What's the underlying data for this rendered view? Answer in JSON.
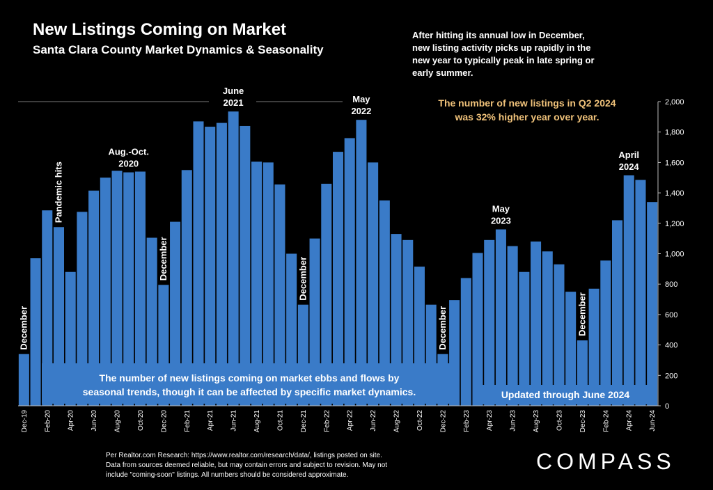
{
  "header": {
    "title": "New Listings Coming on Market",
    "subtitle": "Santa Clara County Market Dynamics & Seasonality"
  },
  "intro_note": [
    "After hitting its annual low in December,",
    "new listing activity picks up rapidly in the",
    "new year to typically peak in late spring or",
    "early summer."
  ],
  "highlight_note": [
    "The number of new listings in Q2 2024",
    "was 32% higher year over year."
  ],
  "caption": [
    "The number of new listings coming on market ebbs and flows by",
    "seasonal trends, though it can be affected by specific market dynamics."
  ],
  "updated_note": "Updated through June 2024",
  "source_note": [
    "Per Realtor.com Research:  https://www.realtor.com/research/data/, listings posted on site.",
    "Data from sources deemed reliable, but may contain errors and subject to revision. May not",
    "include \"coming-soon\" listings. All numbers should be considered approximate."
  ],
  "logo": "COMPASS",
  "colors": {
    "background": "#000000",
    "bar": "#3a7bc8",
    "caption_box": "#3a7bc8",
    "highlight_text": "#f0c27a",
    "gridline": "#7a7a7a",
    "text": "#ffffff"
  },
  "chart_data": {
    "type": "bar",
    "x": [
      "Dec-19",
      "Jan-20",
      "Feb-20",
      "Mar-20",
      "Apr-20",
      "May-20",
      "Jun-20",
      "Jul-20",
      "Aug-20",
      "Sep-20",
      "Oct-20",
      "Nov-20",
      "Dec-20",
      "Jan-21",
      "Feb-21",
      "Mar-21",
      "Apr-21",
      "May-21",
      "Jun-21",
      "Jul-21",
      "Aug-21",
      "Sep-21",
      "Oct-21",
      "Nov-21",
      "Dec-21",
      "Jan-22",
      "Feb-22",
      "Mar-22",
      "Apr-22",
      "May-22",
      "Jun-22",
      "Jul-22",
      "Aug-22",
      "Sep-22",
      "Oct-22",
      "Nov-22",
      "Dec-22",
      "Jan-23",
      "Feb-23",
      "Mar-23",
      "Apr-23",
      "May-23",
      "Jun-23",
      "Jul-23",
      "Aug-23",
      "Sep-23",
      "Oct-23",
      "Nov-23",
      "Dec-23",
      "Jan-24",
      "Feb-24",
      "Mar-24",
      "Apr-24",
      "May-24",
      "Jun-24"
    ],
    "x_tick_labels": [
      "Dec-19",
      "",
      "Feb-20",
      "",
      "Apr-20",
      "",
      "Jun-20",
      "",
      "Aug-20",
      "",
      "Oct-20",
      "",
      "Dec-20",
      "",
      "Feb-21",
      "",
      "Apr-21",
      "",
      "Jun-21",
      "",
      "Aug-21",
      "",
      "Oct-21",
      "",
      "Dec-21",
      "",
      "Feb-22",
      "",
      "Apr-22",
      "",
      "Jun-22",
      "",
      "Aug-22",
      "",
      "Oct-22",
      "",
      "Dec-22",
      "",
      "Feb-23",
      "",
      "Apr-23",
      "",
      "Jun-23",
      "",
      "Aug-23",
      "",
      "Oct-23",
      "",
      "Dec-23",
      "",
      "Feb-24",
      "",
      "Apr-24",
      "",
      "Jun-24"
    ],
    "values": [
      340,
      970,
      1285,
      1175,
      880,
      1275,
      1415,
      1500,
      1545,
      1535,
      1540,
      1105,
      795,
      1210,
      1550,
      1870,
      1835,
      1860,
      1935,
      1840,
      1605,
      1600,
      1455,
      1000,
      665,
      1100,
      1460,
      1670,
      1760,
      1880,
      1600,
      1350,
      1130,
      1090,
      915,
      665,
      340,
      695,
      840,
      1005,
      1090,
      1160,
      1050,
      880,
      1080,
      1015,
      930,
      750,
      430,
      770,
      955,
      1220,
      1515,
      1485,
      1340
    ],
    "y_ticks": [
      "0",
      "200",
      "400",
      "600",
      "800",
      "1,000",
      "1,200",
      "1,400",
      "1,600",
      "1,800",
      "2,000"
    ],
    "ylim": [
      0,
      2000
    ],
    "y_axis_position": "right",
    "grid": false,
    "legend": "none",
    "annotations": [
      {
        "index": 0,
        "lines": [
          "December"
        ],
        "orientation": "vertical"
      },
      {
        "index": 3,
        "lines": [
          "Pandemic hits"
        ],
        "orientation": "vertical"
      },
      {
        "index": 9,
        "lines": [
          "Aug.-Oct.",
          "2020"
        ],
        "orientation": "horizontal"
      },
      {
        "index": 12,
        "lines": [
          "December"
        ],
        "orientation": "vertical"
      },
      {
        "index": 18,
        "lines": [
          "June",
          "2021"
        ],
        "orientation": "horizontal"
      },
      {
        "index": 24,
        "lines": [
          "December"
        ],
        "orientation": "vertical"
      },
      {
        "index": 29,
        "lines": [
          "May",
          "2022"
        ],
        "orientation": "horizontal"
      },
      {
        "index": 36,
        "lines": [
          "December"
        ],
        "orientation": "vertical"
      },
      {
        "index": 41,
        "lines": [
          "May",
          "2023"
        ],
        "orientation": "horizontal"
      },
      {
        "index": 48,
        "lines": [
          "December"
        ],
        "orientation": "vertical"
      },
      {
        "index": 52,
        "lines": [
          "April",
          "2024"
        ],
        "orientation": "horizontal"
      }
    ]
  }
}
